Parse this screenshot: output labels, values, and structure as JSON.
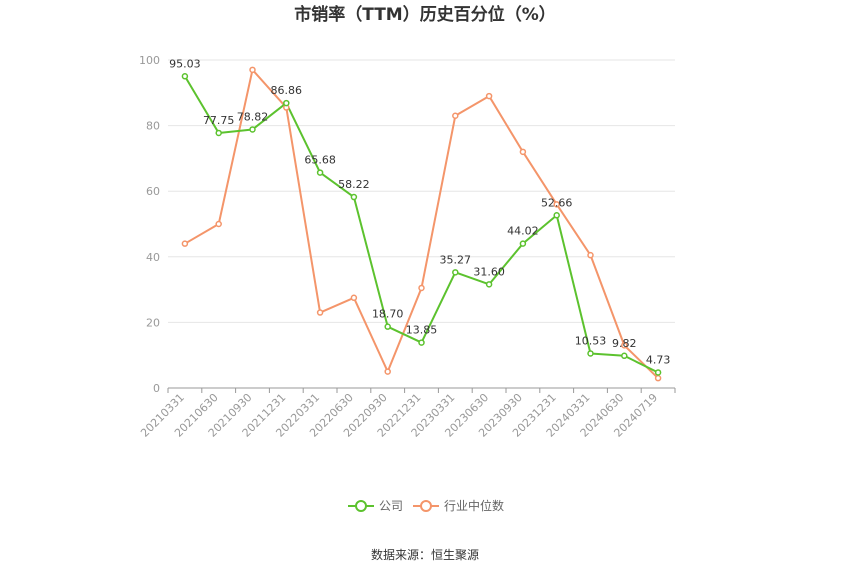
{
  "chart_data": {
    "type": "line",
    "title": "市销率（TTM）历史百分位（%）",
    "categories": [
      "20210331",
      "20210630",
      "20210930",
      "20211231",
      "20220331",
      "20220630",
      "20220930",
      "20221231",
      "20230331",
      "20230630",
      "20230930",
      "20231231",
      "20240331",
      "20240630",
      "20240719"
    ],
    "ylim": [
      0,
      100
    ],
    "yticks": [
      0,
      20,
      40,
      60,
      80,
      100
    ],
    "grid": true,
    "legend_position": "bottom",
    "series": [
      {
        "name": "公司",
        "color": "#5cc22e",
        "values": [
          95.03,
          77.75,
          78.82,
          86.86,
          65.68,
          58.22,
          18.7,
          13.85,
          35.27,
          31.6,
          44.02,
          52.66,
          10.53,
          9.82,
          4.73
        ],
        "labels": [
          "95.03",
          "77.75",
          "78.82",
          "86.86",
          "65.68",
          "58.22",
          "18.70",
          "13.85",
          "35.27",
          "31.60",
          "44.02",
          "52.66",
          "10.53",
          "9.82",
          "4.73"
        ]
      },
      {
        "name": "行业中位数",
        "color": "#f4956a",
        "values": [
          44,
          50,
          97,
          85.5,
          23,
          27.5,
          5,
          30.5,
          83,
          89,
          72,
          56,
          40.5,
          13,
          3
        ]
      }
    ]
  },
  "source": "数据来源：恒生聚源"
}
